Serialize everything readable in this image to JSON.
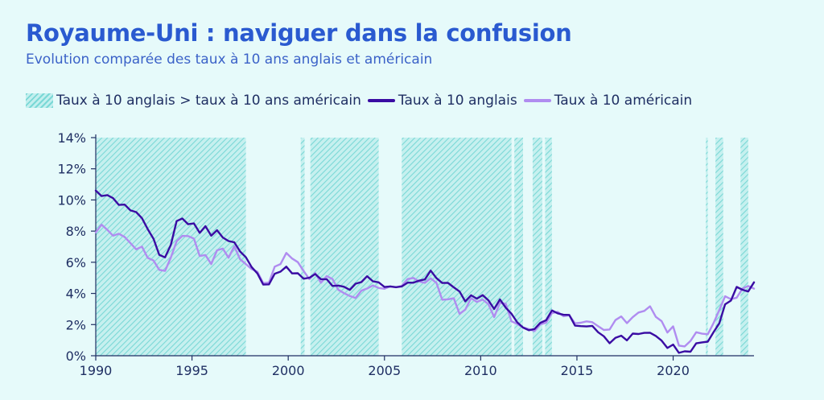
{
  "title": "Royaume-Uni :  naviguer dans la confusion",
  "subtitle": "Evolution comparée des taux à 10 ans anglais et américain",
  "colors": {
    "background": "#e6fafa",
    "uk": "#3a0ca3",
    "us": "#b08cf0",
    "shade": "#7ad8d6",
    "text": "#1f2f63",
    "title": "#2a5ad0"
  },
  "chart_data": {
    "type": "line",
    "title": "Royaume-Uni :  naviguer dans la confusion",
    "subtitle": "Evolution comparée des taux à 10 ans anglais et américain",
    "xlabel": "",
    "ylabel": "",
    "xlim": [
      1990,
      2024.2
    ],
    "ylim": [
      0,
      14
    ],
    "yticks": [
      0,
      2,
      4,
      6,
      8,
      10,
      12,
      14
    ],
    "ytick_labels": [
      "0%",
      "2%",
      "4%",
      "6%",
      "8%",
      "10%",
      "12%",
      "14%"
    ],
    "xticks": [
      1990,
      1995,
      2000,
      2005,
      2010,
      2015,
      2020
    ],
    "xtick_labels": [
      "1990",
      "1995",
      "2000",
      "2005",
      "2010",
      "2015",
      "2020"
    ],
    "grid": false,
    "legend_position": "top",
    "legend": [
      {
        "label": "Taux à 10 anglais > taux à 10 ans américain",
        "kind": "shaded-area"
      },
      {
        "label": "Taux à 10 anglais",
        "kind": "line"
      },
      {
        "label": "Taux à 10 américain",
        "kind": "line"
      }
    ],
    "shaded_periods": [
      [
        1990.0,
        1997.8
      ],
      [
        2000.65,
        2000.85
      ],
      [
        2001.15,
        2004.7
      ],
      [
        2005.9,
        2011.6
      ],
      [
        2011.75,
        2012.2
      ],
      [
        2012.7,
        2013.2
      ],
      [
        2013.35,
        2013.7
      ],
      [
        2021.7,
        2021.8
      ],
      [
        2022.2,
        2022.6
      ],
      [
        2023.5,
        2023.9
      ]
    ],
    "series": [
      {
        "name": "Taux à 10 anglais",
        "x": [
          1990.0,
          1990.3,
          1990.6,
          1990.9,
          1991.2,
          1991.5,
          1991.8,
          1992.1,
          1992.4,
          1992.7,
          1993.0,
          1993.3,
          1993.6,
          1993.9,
          1994.2,
          1994.5,
          1994.8,
          1995.1,
          1995.4,
          1995.7,
          1996.0,
          1996.3,
          1996.6,
          1996.9,
          1997.2,
          1997.5,
          1997.8,
          1998.1,
          1998.4,
          1998.7,
          1999.0,
          1999.3,
          1999.6,
          1999.9,
          2000.2,
          2000.5,
          2000.8,
          2001.1,
          2001.4,
          2001.7,
          2002.0,
          2002.3,
          2002.6,
          2002.9,
          2003.2,
          2003.5,
          2003.8,
          2004.1,
          2004.4,
          2004.7,
          2005.0,
          2005.3,
          2005.6,
          2005.9,
          2006.2,
          2006.5,
          2006.8,
          2007.1,
          2007.4,
          2007.7,
          2008.0,
          2008.3,
          2008.6,
          2008.9,
          2009.2,
          2009.5,
          2009.8,
          2010.1,
          2010.4,
          2010.7,
          2011.0,
          2011.3,
          2011.6,
          2011.9,
          2012.2,
          2012.5,
          2012.8,
          2013.1,
          2013.4,
          2013.7,
          2014.0,
          2014.3,
          2014.6,
          2014.9,
          2015.2,
          2015.5,
          2015.8,
          2016.1,
          2016.4,
          2016.7,
          2017.0,
          2017.3,
          2017.6,
          2017.9,
          2018.2,
          2018.5,
          2018.8,
          2019.1,
          2019.4,
          2019.7,
          2020.0,
          2020.3,
          2020.6,
          2020.9,
          2021.2,
          2021.5,
          2021.8,
          2022.1,
          2022.4,
          2022.7,
          2023.0,
          2023.3,
          2023.6,
          2023.9,
          2024.2
        ],
        "values": [
          10.6,
          10.2,
          10.4,
          10.0,
          9.8,
          9.6,
          9.4,
          9.2,
          8.8,
          8.2,
          7.4,
          6.6,
          6.2,
          7.2,
          8.6,
          8.8,
          8.5,
          8.4,
          8.0,
          8.2,
          7.8,
          8.0,
          7.6,
          7.4,
          7.2,
          6.8,
          6.2,
          5.8,
          5.2,
          4.6,
          4.6,
          5.2,
          5.5,
          5.6,
          5.4,
          5.2,
          5.0,
          5.0,
          5.2,
          5.0,
          4.8,
          4.6,
          4.4,
          4.5,
          4.2,
          4.6,
          4.8,
          5.0,
          4.9,
          4.6,
          4.5,
          4.4,
          4.4,
          4.5,
          4.6,
          4.8,
          4.7,
          5.0,
          5.4,
          5.0,
          4.7,
          4.6,
          4.5,
          4.0,
          3.6,
          3.8,
          3.7,
          3.9,
          3.5,
          3.1,
          3.5,
          3.2,
          2.6,
          2.2,
          1.8,
          1.6,
          1.8,
          2.0,
          2.4,
          2.8,
          2.8,
          2.6,
          2.6,
          2.0,
          1.8,
          2.0,
          1.8,
          1.6,
          1.2,
          0.8,
          1.2,
          1.2,
          1.1,
          1.3,
          1.5,
          1.4,
          1.5,
          1.3,
          0.9,
          0.6,
          0.6,
          0.3,
          0.2,
          0.3,
          0.8,
          0.8,
          1.0,
          1.4,
          2.2,
          3.2,
          3.6,
          4.4,
          4.2,
          4.2,
          4.6
        ]
      },
      {
        "name": "Taux à 10 américain",
        "x": [
          1990.0,
          1990.3,
          1990.6,
          1990.9,
          1991.2,
          1991.5,
          1991.8,
          1992.1,
          1992.4,
          1992.7,
          1993.0,
          1993.3,
          1993.6,
          1993.9,
          1994.2,
          1994.5,
          1994.8,
          1995.1,
          1995.4,
          1995.7,
          1996.0,
          1996.3,
          1996.6,
          1996.9,
          1997.2,
          1997.5,
          1997.8,
          1998.1,
          1998.4,
          1998.7,
          1999.0,
          1999.3,
          1999.6,
          1999.9,
          2000.2,
          2000.5,
          2000.8,
          2001.1,
          2001.4,
          2001.7,
          2002.0,
          2002.3,
          2002.6,
          2002.9,
          2003.2,
          2003.5,
          2003.8,
          2004.1,
          2004.4,
          2004.7,
          2005.0,
          2005.3,
          2005.6,
          2005.9,
          2006.2,
          2006.5,
          2006.8,
          2007.1,
          2007.4,
          2007.7,
          2008.0,
          2008.3,
          2008.6,
          2008.9,
          2009.2,
          2009.5,
          2009.8,
          2010.1,
          2010.4,
          2010.7,
          2011.0,
          2011.3,
          2011.6,
          2011.9,
          2012.2,
          2012.5,
          2012.8,
          2013.1,
          2013.4,
          2013.7,
          2014.0,
          2014.3,
          2014.6,
          2014.9,
          2015.2,
          2015.5,
          2015.8,
          2016.1,
          2016.4,
          2016.7,
          2017.0,
          2017.3,
          2017.6,
          2017.9,
          2018.2,
          2018.5,
          2018.8,
          2019.1,
          2019.4,
          2019.7,
          2020.0,
          2020.3,
          2020.6,
          2020.9,
          2021.2,
          2021.5,
          2021.8,
          2022.1,
          2022.4,
          2022.7,
          2023.0,
          2023.3,
          2023.6,
          2023.9,
          2024.2
        ],
        "values": [
          8.0,
          8.3,
          8.2,
          7.6,
          7.9,
          7.6,
          7.2,
          6.9,
          6.9,
          6.4,
          6.0,
          5.6,
          5.4,
          6.3,
          7.4,
          7.6,
          7.8,
          7.4,
          6.5,
          6.4,
          5.9,
          6.8,
          6.8,
          6.4,
          6.9,
          6.3,
          5.8,
          5.6,
          5.4,
          4.6,
          4.8,
          5.6,
          6.0,
          6.5,
          6.3,
          6.0,
          5.4,
          5.0,
          5.2,
          4.8,
          5.0,
          5.0,
          4.2,
          4.0,
          3.9,
          3.6,
          4.3,
          4.2,
          4.6,
          4.3,
          4.3,
          4.5,
          4.3,
          4.6,
          4.8,
          5.1,
          4.7,
          4.7,
          5.0,
          4.6,
          3.7,
          3.5,
          3.8,
          2.6,
          3.0,
          3.7,
          3.4,
          3.7,
          3.2,
          2.6,
          3.3,
          3.4,
          2.2,
          2.0,
          1.9,
          1.6,
          1.7,
          1.9,
          2.2,
          2.7,
          2.8,
          2.6,
          2.5,
          2.2,
          2.0,
          2.3,
          2.1,
          1.9,
          1.7,
          1.6,
          2.4,
          2.4,
          2.2,
          2.4,
          2.8,
          2.9,
          3.1,
          2.6,
          2.1,
          1.6,
          1.8,
          0.7,
          0.6,
          0.9,
          1.6,
          1.3,
          1.5,
          2.0,
          3.0,
          3.8,
          3.6,
          3.8,
          4.2,
          4.6,
          4.2
        ]
      }
    ]
  }
}
